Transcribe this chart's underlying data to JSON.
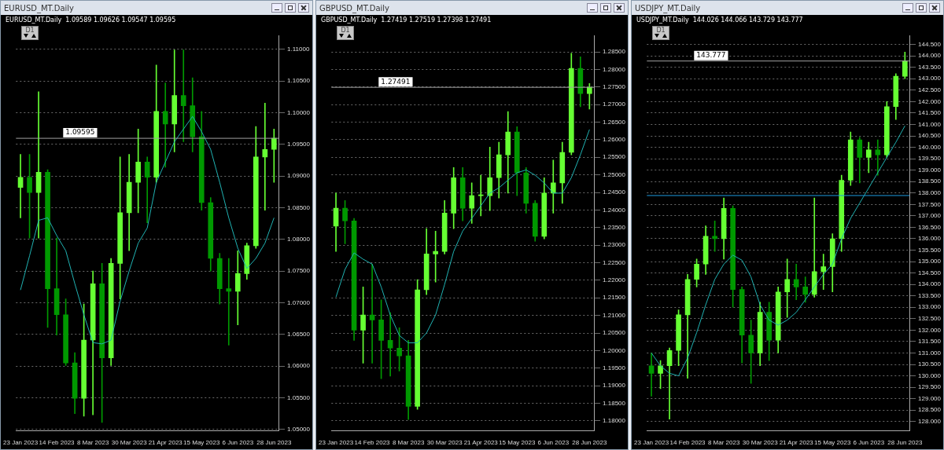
{
  "chart_data": [
    {
      "type": "candlestick",
      "title": "EURUSD_MT.Daily",
      "subtitle": "EURUSD_MT.Daily  1.09589 1.09626 1.09547 1.09595",
      "annotations": [
        "D1"
      ],
      "categories": [
        "23 Jan 2023",
        null,
        null,
        null,
        "14 Feb 2023",
        null,
        null,
        null,
        "8 Mar 2023",
        null,
        null,
        null,
        "30 Mar 2023",
        null,
        null,
        null,
        "21 Apr 2023",
        null,
        null,
        null,
        "15 May 2023",
        null,
        null,
        null,
        "6 Jun 2023",
        null,
        null,
        null,
        "28 Jun 2023"
      ],
      "ohlc": [
        [
          1.0882,
          1.0934,
          1.0834,
          1.0898
        ],
        [
          1.0898,
          1.0934,
          1.0802,
          1.0874
        ],
        [
          1.0874,
          1.1033,
          1.0802,
          1.0906
        ],
        [
          1.0906,
          1.091,
          1.0661,
          1.0722
        ],
        [
          1.0722,
          1.0802,
          1.0649,
          1.0681
        ],
        [
          1.0681,
          1.0706,
          1.0601,
          1.0605
        ],
        [
          1.0605,
          1.0621,
          1.0525,
          1.0549
        ],
        [
          1.0549,
          1.0698,
          1.0521,
          1.0641
        ],
        [
          1.0641,
          1.075,
          1.0523,
          1.073
        ],
        [
          1.073,
          1.0762,
          1.0511,
          1.0613
        ],
        [
          1.0613,
          1.077,
          1.0601,
          1.0762
        ],
        [
          1.0762,
          1.093,
          1.0706,
          1.0842
        ],
        [
          1.0842,
          1.0934,
          1.0782,
          1.089
        ],
        [
          1.089,
          1.0974,
          1.0842,
          1.0922
        ],
        [
          1.0922,
          1.093,
          1.0826,
          1.0898
        ],
        [
          1.0898,
          1.1075,
          1.089,
          1.1002
        ],
        [
          1.1002,
          1.1047,
          1.0914,
          1.0982
        ],
        [
          1.0982,
          1.1099,
          1.0938,
          1.1027
        ],
        [
          1.1027,
          1.1099,
          1.0954,
          1.1011
        ],
        [
          1.1011,
          1.1055,
          1.0938,
          1.0962
        ],
        [
          1.0962,
          1.1002,
          1.0846,
          1.0858
        ],
        [
          1.0858,
          1.0866,
          1.075,
          1.077
        ],
        [
          1.077,
          1.0778,
          1.0698,
          1.0722
        ],
        [
          1.0722,
          1.077,
          1.0633,
          1.0718
        ],
        [
          1.0718,
          1.0782,
          1.0665,
          1.0746
        ],
        [
          1.0746,
          1.0794,
          1.0737,
          1.079
        ],
        [
          1.079,
          1.0978,
          1.0786,
          1.093
        ],
        [
          1.093,
          1.1015,
          1.0846,
          1.0942
        ],
        [
          1.0942,
          1.0974,
          1.089,
          1.09595
        ]
      ],
      "colors": [
        "#66ff33",
        "#009900",
        "#66ff33",
        "#009900",
        "#009900",
        "#009900",
        "#009900",
        "#66ff33",
        "#66ff33",
        "#009900",
        "#66ff33",
        "#66ff33",
        "#66ff33",
        "#66ff33",
        "#009900",
        "#66ff33",
        "#009900",
        "#66ff33",
        "#009900",
        "#009900",
        "#009900",
        "#009900",
        "#009900",
        "#009900",
        "#66ff33",
        "#66ff33",
        "#66ff33",
        "#66ff33",
        "#66ff33"
      ],
      "series": [
        {
          "type": "line",
          "color": "#20b2b2",
          "values": [
            1.072,
            1.0774,
            1.083,
            1.0834,
            1.0806,
            1.0782,
            1.073,
            1.0681,
            1.0637,
            1.0635,
            1.0641,
            1.0702,
            1.075,
            1.0794,
            1.0818,
            1.089,
            1.0922,
            1.0954,
            1.0974,
            1.0994,
            1.097,
            1.0942,
            1.089,
            1.0834,
            1.0786,
            1.0754,
            1.077,
            1.0794,
            1.0834
          ]
        }
      ],
      "ylim": [
        1.0498,
        1.1122
      ],
      "yticks": [
        {
          "value": 1.05,
          "label": "1.05000"
        },
        {
          "value": 1.055,
          "label": "1.05500"
        },
        {
          "value": 1.06,
          "label": "1.06000"
        },
        {
          "value": 1.065,
          "label": "1.06500"
        },
        {
          "value": 1.07,
          "label": "1.07000"
        },
        {
          "value": 1.075,
          "label": "1.07500"
        },
        {
          "value": 1.08,
          "label": "1.08000"
        },
        {
          "value": 1.085,
          "label": "1.08500"
        },
        {
          "value": 1.09,
          "label": "1.09000"
        },
        {
          "value": 1.095,
          "label": "1.09500"
        },
        {
          "value": 1.1,
          "label": "1.10000"
        },
        {
          "value": 1.105,
          "label": "1.10500"
        },
        {
          "value": 1.11,
          "label": "1.11000"
        }
      ],
      "ref_lines": [
        {
          "axis": "y",
          "value": 1.09595,
          "label": "1.09595",
          "color": "#a0a0a0"
        }
      ],
      "grid": "y"
    },
    {
      "type": "candlestick",
      "title": "GBPUSD_MT.Daily",
      "subtitle": "GBPUSD_MT.Daily  1.27419 1.27519 1.27398 1.27491",
      "annotations": [
        "D1"
      ],
      "categories": [
        "23 Jan 2023",
        null,
        null,
        null,
        "14 Feb 2023",
        null,
        null,
        null,
        "8 Mar 2023",
        null,
        null,
        null,
        "30 Mar 2023",
        null,
        null,
        null,
        "21 Apr 2023",
        null,
        null,
        null,
        "15 May 2023",
        null,
        null,
        null,
        "6 Jun 2023",
        null,
        null,
        null,
        "28 Jun 2023"
      ],
      "ohlc": [
        [
          1.2354,
          1.2448,
          1.2282,
          1.2405
        ],
        [
          1.2405,
          1.2427,
          1.2304,
          1.2369
        ],
        [
          1.2369,
          1.2376,
          1.2029,
          1.2058
        ],
        [
          1.2058,
          1.2181,
          1.1964,
          1.2101
        ],
        [
          1.2101,
          1.2246,
          1.1964,
          1.2087
        ],
        [
          1.2087,
          1.2144,
          1.192,
          1.2029
        ],
        [
          1.2029,
          1.2108,
          1.1927,
          1.2007
        ],
        [
          1.2007,
          1.2065,
          1.1942,
          1.1985
        ],
        [
          1.1985,
          1.2029,
          1.1804,
          1.1841
        ],
        [
          1.1841,
          1.2202,
          1.1833,
          1.2173
        ],
        [
          1.2173,
          1.2347,
          1.2159,
          1.2275
        ],
        [
          1.2275,
          1.234,
          1.2195,
          1.2282
        ],
        [
          1.2282,
          1.2427,
          1.2275,
          1.2391
        ],
        [
          1.2391,
          1.2521,
          1.2347,
          1.2492
        ],
        [
          1.2492,
          1.2521,
          1.2369,
          1.2405
        ],
        [
          1.2405,
          1.2477,
          1.2362,
          1.2441
        ],
        [
          1.2441,
          1.2499,
          1.2383,
          1.2441
        ],
        [
          1.2441,
          1.2579,
          1.2398,
          1.2492
        ],
        [
          1.2492,
          1.2593,
          1.2434,
          1.2557
        ],
        [
          1.2557,
          1.268,
          1.2448,
          1.2622
        ],
        [
          1.2622,
          1.2637,
          1.2441,
          1.2506
        ],
        [
          1.2506,
          1.2521,
          1.2391,
          1.2419
        ],
        [
          1.2419,
          1.2427,
          1.2311,
          1.2325
        ],
        [
          1.2325,
          1.2492,
          1.2318,
          1.2448
        ],
        [
          1.2448,
          1.2542,
          1.2391,
          1.2477
        ],
        [
          1.2477,
          1.2593,
          1.2419,
          1.2564
        ],
        [
          1.2564,
          1.2846,
          1.2557,
          1.2803
        ],
        [
          1.2803,
          1.2836,
          1.2694,
          1.2731
        ],
        [
          1.2731,
          1.276,
          1.2687,
          1.27491
        ]
      ],
      "colors": [
        "#66ff33",
        "#009900",
        "#009900",
        "#66ff33",
        "#009900",
        "#009900",
        "#009900",
        "#009900",
        "#009900",
        "#66ff33",
        "#66ff33",
        "#66ff33",
        "#66ff33",
        "#66ff33",
        "#009900",
        "#66ff33",
        "#66ff33",
        "#66ff33",
        "#66ff33",
        "#66ff33",
        "#009900",
        "#009900",
        "#009900",
        "#66ff33",
        "#66ff33",
        "#66ff33",
        "#66ff33",
        "#009900",
        "#66ff33"
      ],
      "series": [
        {
          "type": "line",
          "color": "#20b2b2",
          "values": [
            1.2152,
            1.2231,
            1.2278,
            1.226,
            1.2246,
            1.2181,
            1.2101,
            1.2043,
            1.2022,
            1.2022,
            1.205,
            1.2101,
            1.2188,
            1.2282,
            1.234,
            1.2376,
            1.2412,
            1.2448,
            1.2463,
            1.2485,
            1.2506,
            1.2514,
            1.2499,
            1.2477,
            1.2448,
            1.2448,
            1.2492,
            1.2557,
            1.2629
          ]
        }
      ],
      "ylim": [
        1.1772,
        1.2897
      ],
      "yticks": [
        {
          "value": 1.18,
          "label": "1.18000"
        },
        {
          "value": 1.185,
          "label": "1.18500"
        },
        {
          "value": 1.19,
          "label": "1.19000"
        },
        {
          "value": 1.195,
          "label": "1.19500"
        },
        {
          "value": 1.2,
          "label": "1.20000"
        },
        {
          "value": 1.205,
          "label": "1.20500"
        },
        {
          "value": 1.21,
          "label": "1.21000"
        },
        {
          "value": 1.215,
          "label": "1.21500"
        },
        {
          "value": 1.22,
          "label": "1.22000"
        },
        {
          "value": 1.225,
          "label": "1.22500"
        },
        {
          "value": 1.23,
          "label": "1.23000"
        },
        {
          "value": 1.235,
          "label": "1.23500"
        },
        {
          "value": 1.24,
          "label": "1.24000"
        },
        {
          "value": 1.245,
          "label": "1.24500"
        },
        {
          "value": 1.25,
          "label": "1.25000"
        },
        {
          "value": 1.255,
          "label": "1.25500"
        },
        {
          "value": 1.26,
          "label": "1.26000"
        },
        {
          "value": 1.265,
          "label": "1.26500"
        },
        {
          "value": 1.27,
          "label": "1.27000"
        },
        {
          "value": 1.275,
          "label": "1.27500"
        },
        {
          "value": 1.28,
          "label": "1.28000"
        },
        {
          "value": 1.285,
          "label": "1.28500"
        }
      ],
      "ref_lines": [
        {
          "axis": "y",
          "value": 1.27491,
          "label": "1.27491",
          "color": "#a0a0a0"
        }
      ],
      "grid": "y"
    },
    {
      "type": "candlestick",
      "title": "USDJPY_MT.Daily",
      "subtitle": "USDJPY_MT.Daily  144.026 144.066 143.729 143.777",
      "annotations": [
        "D1"
      ],
      "categories": [
        "23 Jan 2023",
        null,
        null,
        null,
        "14 Feb 2023",
        null,
        null,
        null,
        "8 Mar 2023",
        null,
        null,
        null,
        "30 Mar 2023",
        null,
        null,
        null,
        "21 Apr 2023",
        null,
        null,
        null,
        "15 May 2023",
        null,
        null,
        null,
        "6 Jun 2023",
        null,
        null,
        null,
        "28 Jun 2023"
      ],
      "ohlc": [
        [
          130.44,
          131.0,
          129.11,
          130.11
        ],
        [
          130.11,
          130.67,
          129.44,
          130.44
        ],
        [
          130.44,
          131.22,
          128.11,
          131.11
        ],
        [
          131.11,
          132.89,
          130.44,
          132.67
        ],
        [
          132.67,
          134.44,
          129.89,
          134.22
        ],
        [
          134.22,
          135.11,
          133.89,
          134.89
        ],
        [
          134.89,
          136.56,
          134.44,
          136.11
        ],
        [
          136.11,
          136.78,
          135.44,
          136.0
        ],
        [
          136.0,
          137.78,
          135.11,
          137.33
        ],
        [
          137.33,
          137.44,
          133.0,
          133.78
        ],
        [
          133.78,
          133.89,
          130.56,
          131.78
        ],
        [
          131.78,
          132.44,
          129.67,
          131.0
        ],
        [
          131.0,
          133.22,
          130.44,
          132.78
        ],
        [
          132.78,
          133.22,
          130.67,
          131.56
        ],
        [
          131.56,
          133.89,
          131.0,
          133.67
        ],
        [
          133.67,
          135.11,
          132.56,
          134.22
        ],
        [
          134.22,
          134.89,
          133.33,
          133.89
        ],
        [
          133.89,
          134.33,
          133.22,
          133.56
        ],
        [
          133.56,
          137.78,
          133.44,
          134.56
        ],
        [
          134.56,
          135.33,
          133.78,
          134.78
        ],
        [
          134.78,
          136.22,
          133.67,
          136.0
        ],
        [
          136.0,
          138.78,
          135.44,
          138.56
        ],
        [
          138.56,
          140.67,
          138.33,
          140.33
        ],
        [
          140.33,
          140.44,
          138.44,
          139.56
        ],
        [
          139.56,
          140.22,
          138.89,
          139.89
        ],
        [
          139.89,
          140.33,
          138.78,
          139.67
        ],
        [
          139.67,
          142.0,
          139.56,
          141.78
        ],
        [
          141.78,
          143.22,
          141.22,
          143.11
        ],
        [
          143.11,
          144.17,
          143.0,
          143.777
        ]
      ],
      "colors": [
        "#009900",
        "#66ff33",
        "#66ff33",
        "#66ff33",
        "#66ff33",
        "#66ff33",
        "#66ff33",
        "#009900",
        "#66ff33",
        "#009900",
        "#009900",
        "#009900",
        "#66ff33",
        "#009900",
        "#66ff33",
        "#66ff33",
        "#009900",
        "#009900",
        "#66ff33",
        "#66ff33",
        "#66ff33",
        "#66ff33",
        "#66ff33",
        "#009900",
        "#66ff33",
        "#009900",
        "#66ff33",
        "#66ff33",
        "#66ff33"
      ],
      "series": [
        {
          "type": "line",
          "color": "#20b2b2",
          "values": [
            131.0,
            130.44,
            130.11,
            130.0,
            130.78,
            131.89,
            133.11,
            134.22,
            134.89,
            135.28,
            135.06,
            134.33,
            133.11,
            132.44,
            132.22,
            132.44,
            132.78,
            133.33,
            133.89,
            134.44,
            134.89,
            136.0,
            136.89,
            137.56,
            138.22,
            138.89,
            139.56,
            140.22,
            140.94
          ]
        }
      ],
      "ylim": [
        127.6,
        144.9
      ],
      "yticks": [
        {
          "value": 128,
          "label": "128.000"
        },
        {
          "value": 128.5,
          "label": "128.500"
        },
        {
          "value": 129,
          "label": "129.000"
        },
        {
          "value": 129.5,
          "label": "129.500"
        },
        {
          "value": 130,
          "label": "130.000"
        },
        {
          "value": 130.5,
          "label": "130.500"
        },
        {
          "value": 131,
          "label": "131.000"
        },
        {
          "value": 131.5,
          "label": "131.500"
        },
        {
          "value": 132,
          "label": "132.000"
        },
        {
          "value": 132.5,
          "label": "132.500"
        },
        {
          "value": 133,
          "label": "133.000"
        },
        {
          "value": 133.5,
          "label": "133.500"
        },
        {
          "value": 134,
          "label": "134.000"
        },
        {
          "value": 134.5,
          "label": "134.500"
        },
        {
          "value": 135,
          "label": "135.000"
        },
        {
          "value": 135.5,
          "label": "135.500"
        },
        {
          "value": 136,
          "label": "136.000"
        },
        {
          "value": 136.5,
          "label": "136.500"
        },
        {
          "value": 137,
          "label": "137.000"
        },
        {
          "value": 137.5,
          "label": "137.500"
        },
        {
          "value": 138,
          "label": "138.000"
        },
        {
          "value": 138.5,
          "label": "138.500"
        },
        {
          "value": 139,
          "label": "139.000"
        },
        {
          "value": 139.5,
          "label": "139.500"
        },
        {
          "value": 140,
          "label": "140.000"
        },
        {
          "value": 140.5,
          "label": "140.500"
        },
        {
          "value": 141,
          "label": "141.000"
        },
        {
          "value": 141.5,
          "label": "141.500"
        },
        {
          "value": 142,
          "label": "142.000"
        },
        {
          "value": 142.5,
          "label": "142.500"
        },
        {
          "value": 143,
          "label": "143.000"
        },
        {
          "value": 143.5,
          "label": "143.500"
        },
        {
          "value": 144,
          "label": "144.000"
        },
        {
          "value": 144.5,
          "label": "144.500"
        }
      ],
      "ref_lines": [
        {
          "axis": "y",
          "value": 143.777,
          "label": "143.777",
          "color": "#a0a0a0"
        },
        {
          "axis": "y",
          "value": 137.89,
          "color": "#1e9be0"
        }
      ],
      "grid": "y"
    }
  ]
}
